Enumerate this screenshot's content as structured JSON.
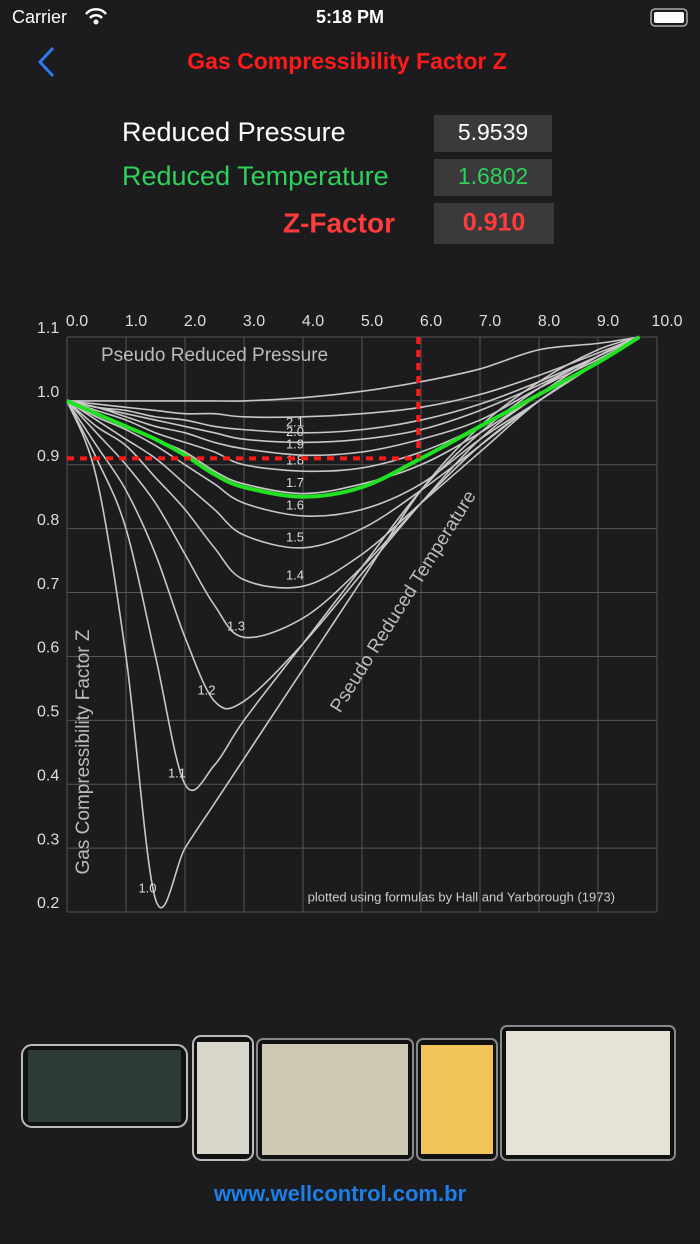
{
  "status_bar": {
    "carrier": "Carrier",
    "time": "5:18 PM"
  },
  "header": {
    "title": "Gas Compressibility Factor Z"
  },
  "form": {
    "reduced_pressure_label": "Reduced Pressure",
    "reduced_pressure": 5.9539,
    "reduced_temperature_label": "Reduced Temperature",
    "reduced_temperature": 1.6802,
    "z_factor_label": "Z-Factor",
    "z_factor": {
      "value": 0.91,
      "label": "0.910"
    }
  },
  "chart_data": {
    "type": "line",
    "x_label": "Pseudo Reduced Pressure",
    "y_label": "Gas Compressibility Factor Z",
    "curve_family_label": "Pseudo Reduced Temperature",
    "note": "plotted using formulas by Hall and Yarborough (1973)",
    "x": [
      0,
      0.5,
      1,
      1.5,
      2,
      2.5,
      3,
      4,
      5,
      6,
      7,
      8,
      9,
      9.7
    ],
    "xlim": [
      0,
      10
    ],
    "ylim": [
      0.2,
      1.1
    ],
    "grid": true,
    "xticks": [
      {
        "value": 0,
        "label": "0.0"
      },
      {
        "value": 1,
        "label": "1.0"
      },
      {
        "value": 2,
        "label": "2.0"
      },
      {
        "value": 3,
        "label": "3.0"
      },
      {
        "value": 4,
        "label": "4.0"
      },
      {
        "value": 5,
        "label": "5.0"
      },
      {
        "value": 6,
        "label": "6.0"
      },
      {
        "value": 7,
        "label": "7.0"
      },
      {
        "value": 8,
        "label": "8.0"
      },
      {
        "value": 9,
        "label": "9.0"
      },
      {
        "value": 10,
        "label": "10.0"
      }
    ],
    "yticks": [
      0.2,
      0.3,
      0.4,
      0.5,
      0.6,
      0.7,
      0.8,
      0.9,
      {
        "value": 1,
        "label": "1.0"
      },
      1.1
    ],
    "series": [
      {
        "name": "1.0",
        "color": "#c8c8c8",
        "values": [
          1.0,
          0.88,
          0.6,
          0.22,
          0.3,
          0.37,
          0.44,
          0.58,
          0.72,
          0.86,
          0.96,
          1.03,
          1.08,
          1.1
        ]
      },
      {
        "name": "1.1",
        "color": "#c8c8c8",
        "values": [
          1.0,
          0.91,
          0.8,
          0.6,
          0.4,
          0.43,
          0.5,
          0.62,
          0.74,
          0.86,
          0.95,
          1.02,
          1.07,
          1.1
        ]
      },
      {
        "name": "1.2",
        "color": "#c8c8c8",
        "values": [
          1.0,
          0.93,
          0.86,
          0.76,
          0.63,
          0.53,
          0.53,
          0.62,
          0.73,
          0.84,
          0.94,
          1.01,
          1.07,
          1.1
        ]
      },
      {
        "name": "1.3",
        "color": "#c8c8c8",
        "values": [
          1.0,
          0.95,
          0.9,
          0.84,
          0.76,
          0.68,
          0.63,
          0.66,
          0.74,
          0.84,
          0.93,
          1.0,
          1.06,
          1.1
        ]
      },
      {
        "name": "1.4",
        "color": "#c8c8c8",
        "values": [
          1.0,
          0.96,
          0.93,
          0.88,
          0.83,
          0.77,
          0.72,
          0.71,
          0.76,
          0.84,
          0.92,
          1.0,
          1.06,
          1.1
        ]
      },
      {
        "name": "1.5",
        "color": "#c8c8c8",
        "values": [
          1.0,
          0.97,
          0.94,
          0.91,
          0.87,
          0.83,
          0.79,
          0.77,
          0.8,
          0.86,
          0.93,
          1.0,
          1.06,
          1.1
        ]
      },
      {
        "name": "1.6",
        "color": "#c8c8c8",
        "values": [
          1.0,
          0.975,
          0.955,
          0.93,
          0.9,
          0.87,
          0.84,
          0.82,
          0.83,
          0.87,
          0.94,
          1.0,
          1.06,
          1.1
        ]
      },
      {
        "name": "1.7",
        "color": "#c8c8c8",
        "values": [
          1.0,
          0.98,
          0.96,
          0.94,
          0.92,
          0.89,
          0.87,
          0.855,
          0.87,
          0.9,
          0.95,
          1.01,
          1.06,
          1.1
        ]
      },
      {
        "name": "1.8",
        "color": "#c8c8c8",
        "values": [
          1.0,
          0.985,
          0.97,
          0.95,
          0.935,
          0.92,
          0.9,
          0.89,
          0.895,
          0.92,
          0.96,
          1.01,
          1.06,
          1.1
        ]
      },
      {
        "name": "1.9",
        "color": "#c8c8c8",
        "values": [
          1.0,
          0.99,
          0.975,
          0.96,
          0.95,
          0.935,
          0.925,
          0.915,
          0.92,
          0.94,
          0.97,
          1.02,
          1.065,
          1.1
        ]
      },
      {
        "name": "2.0",
        "color": "#c8c8c8",
        "values": [
          1.0,
          0.99,
          0.98,
          0.97,
          0.96,
          0.95,
          0.94,
          0.935,
          0.94,
          0.955,
          0.985,
          1.025,
          1.07,
          1.1
        ]
      },
      {
        "name": "2.1",
        "color": "#c8c8c8",
        "values": [
          1.0,
          0.99,
          0.985,
          0.975,
          0.97,
          0.96,
          0.955,
          0.95,
          0.955,
          0.97,
          0.995,
          1.03,
          1.07,
          1.1
        ]
      },
      {
        "color": "#c8c8c8",
        "values": [
          1.0,
          0.995,
          0.99,
          0.985,
          0.98,
          0.98,
          0.975,
          0.975,
          0.98,
          0.99,
          1.01,
          1.04,
          1.075,
          1.1
        ]
      },
      {
        "color": "#c8c8c8",
        "values": [
          1.0,
          1.0,
          1.0,
          1.0,
          1.0,
          1.0,
          1.0,
          1.005,
          1.015,
          1.03,
          1.05,
          1.08,
          1.09,
          1.1
        ]
      },
      {
        "color": "#22e022",
        "values": [
          1.0,
          0.98,
          0.96,
          0.94,
          0.915,
          0.885,
          0.865,
          0.85,
          0.865,
          0.91,
          0.96,
          1.01,
          1.06,
          1.1
        ]
      }
    ]
  },
  "footer": {
    "url": "www.wellcontrol.com.br"
  }
}
